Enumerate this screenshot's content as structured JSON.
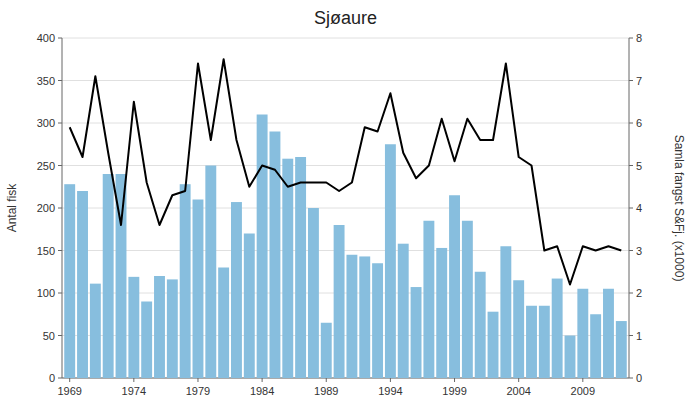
{
  "chart_data": {
    "type": "bar",
    "title": "Sjøaure",
    "ylabel": "Antal fisk",
    "y2label": "Samla fangst S&Fj. (x1000)",
    "x": [
      1969,
      1970,
      1971,
      1972,
      1973,
      1974,
      1975,
      1976,
      1977,
      1978,
      1979,
      1980,
      1981,
      1982,
      1983,
      1984,
      1985,
      1986,
      1987,
      1988,
      1989,
      1990,
      1991,
      1992,
      1993,
      1994,
      1995,
      1996,
      1997,
      1998,
      1999,
      2000,
      2001,
      2002,
      2003,
      2004,
      2005,
      2006,
      2007,
      2008,
      2009,
      2010,
      2011,
      2012
    ],
    "series": [
      {
        "type": "bar",
        "color": "#87BEDE",
        "values": [
          228,
          220,
          111,
          240,
          240,
          119,
          90,
          120,
          116,
          228,
          210,
          250,
          130,
          207,
          170,
          310,
          290,
          258,
          260,
          200,
          65,
          180,
          145,
          143,
          135,
          275,
          158,
          107,
          185,
          153,
          215,
          185,
          125,
          78,
          155,
          115,
          85,
          85,
          117,
          50,
          105,
          75,
          105,
          67
        ]
      },
      {
        "type": "line",
        "axis": "y2",
        "color": "#000000",
        "values": [
          5.9,
          5.2,
          7.1,
          5.3,
          3.6,
          6.5,
          4.6,
          3.6,
          4.3,
          4.4,
          7.4,
          5.6,
          7.5,
          5.6,
          4.5,
          5.0,
          4.9,
          4.5,
          4.6,
          4.6,
          4.6,
          4.4,
          4.6,
          5.9,
          5.8,
          6.7,
          5.3,
          4.7,
          5.0,
          6.1,
          5.1,
          6.1,
          5.6,
          5.6,
          7.4,
          5.2,
          5.0,
          3.0,
          3.1,
          2.2,
          3.1,
          3.0,
          3.1,
          3.0
        ]
      }
    ],
    "xlim": [
      1968.4,
      2012.6
    ],
    "xticks": [
      1969,
      1974,
      1979,
      1984,
      1989,
      1994,
      1999,
      2004,
      2009
    ],
    "ylim": [
      0,
      400
    ],
    "yticks": [
      0,
      50,
      100,
      150,
      200,
      250,
      300,
      350,
      400
    ],
    "y2lim": [
      0,
      8
    ],
    "y2ticks": [
      0,
      1,
      2,
      3,
      4,
      5,
      6,
      7,
      8
    ],
    "grid": true
  }
}
